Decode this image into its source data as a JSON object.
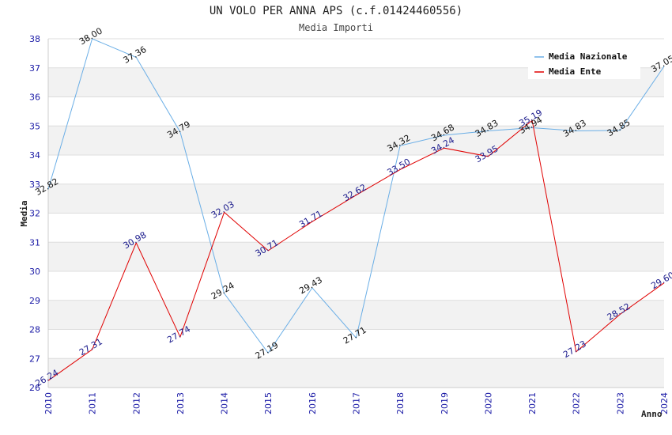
{
  "chart_data": {
    "type": "line",
    "title": "UN VOLO PER ANNA APS (c.f.01424460556)",
    "subtitle": "Media Importi",
    "xlabel": "Anno",
    "ylabel": "Media",
    "x": [
      "2010",
      "2011",
      "2012",
      "2013",
      "2014",
      "2015",
      "2016",
      "2017",
      "2018",
      "2019",
      "2020",
      "2021",
      "2022",
      "2023",
      "2024"
    ],
    "ylim": [
      26,
      38
    ],
    "yticks": [
      "26",
      "27",
      "28",
      "29",
      "30",
      "31",
      "32",
      "33",
      "34",
      "35",
      "36",
      "37",
      "38"
    ],
    "grid": "horizontal bands",
    "legend_position": "top-right",
    "series": [
      {
        "name": "Media Nazionale",
        "color": "#6aaee6",
        "values": [
          32.82,
          38.0,
          37.36,
          34.79,
          29.24,
          27.19,
          29.43,
          27.71,
          34.32,
          34.68,
          34.83,
          34.94,
          34.83,
          34.85,
          37.05
        ],
        "labels": [
          "32.82",
          "38.00",
          "37.36",
          "34.79",
          "29.24",
          "27.19",
          "29.43",
          "27.71",
          "34.32",
          "34.68",
          "34.83",
          "34.94",
          "34.83",
          "34.85",
          "37.05"
        ]
      },
      {
        "name": "Media Ente",
        "color": "#e00000",
        "values": [
          26.24,
          27.31,
          30.98,
          27.74,
          32.03,
          30.71,
          31.71,
          32.62,
          33.5,
          34.24,
          33.95,
          35.19,
          27.23,
          28.52,
          29.6
        ],
        "labels": [
          "26.24",
          "27.31",
          "30.98",
          "27.74",
          "32.03",
          "30.71",
          "31.71",
          "32.62",
          "33.50",
          "34.24",
          "33.95",
          "35.19",
          "27.23",
          "28.52",
          "29.60"
        ]
      }
    ]
  }
}
